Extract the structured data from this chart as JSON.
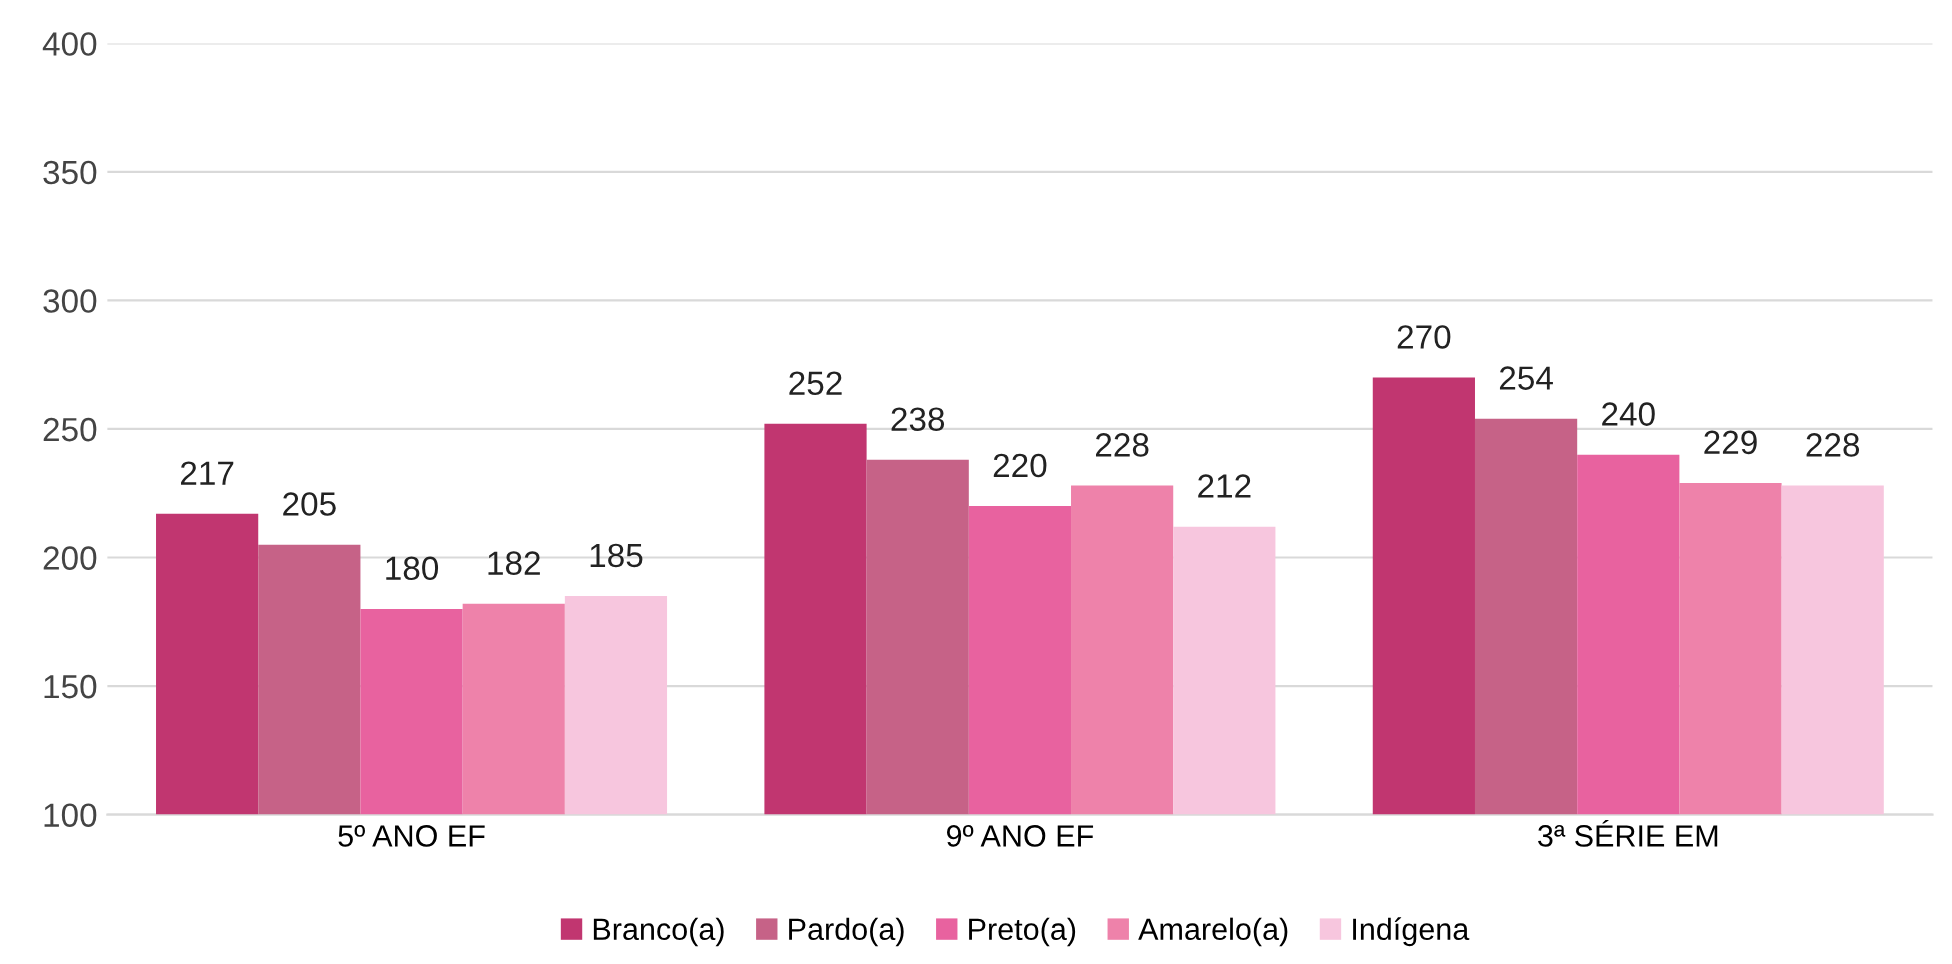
{
  "chart_data": {
    "type": "bar",
    "categories": [
      "5º ANO EF",
      "9º ANO EF",
      "3ª SÉRIE EM"
    ],
    "series": [
      {
        "name": "Branco(a)",
        "color": "#c13670",
        "values": [
          217,
          252,
          270
        ]
      },
      {
        "name": "Pardo(a)",
        "color": "#c66287",
        "values": [
          205,
          238,
          254
        ]
      },
      {
        "name": "Preto(a)",
        "color": "#e8629f",
        "values": [
          180,
          220,
          240
        ]
      },
      {
        "name": "Amarelo(a)",
        "color": "#ee82aa",
        "values": [
          182,
          228,
          229
        ]
      },
      {
        "name": "Indígena",
        "color": "#f7c6de",
        "values": [
          185,
          212,
          228
        ]
      }
    ],
    "ylim": [
      100,
      400
    ],
    "yticks": [
      100,
      150,
      200,
      250,
      300,
      350,
      400
    ],
    "grid": "y",
    "legend": "bottom",
    "data_labels": true
  }
}
